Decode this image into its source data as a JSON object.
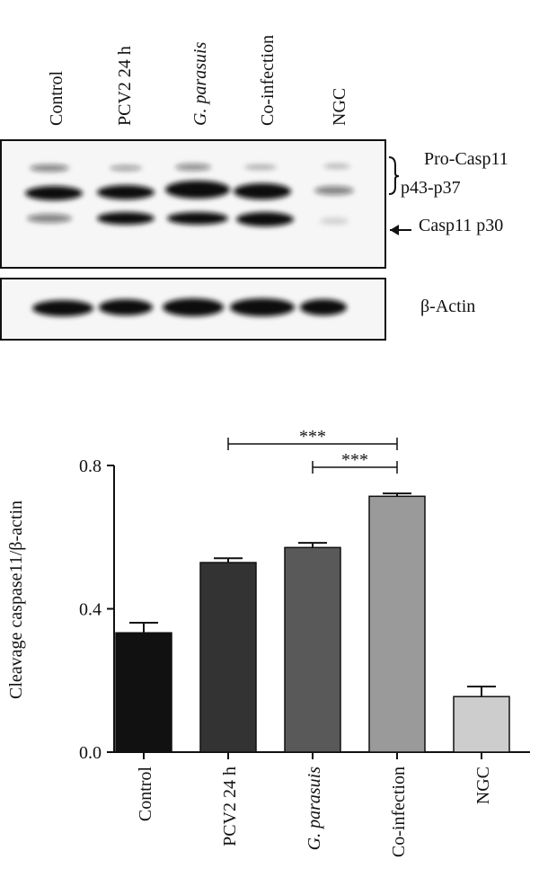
{
  "blot": {
    "lanes": [
      "Control",
      "PCV2 24 h",
      "G. parasuis",
      "Co-infection",
      "NGC"
    ],
    "labels": [
      "Pro-Casp11",
      "p43-p37",
      "Casp11 p30",
      "β-Actin"
    ]
  },
  "chart_data": {
    "type": "bar",
    "ylabel": "Cleavage caspase11/β-actin",
    "categories": [
      "Control",
      "PCV2 24 h",
      "G. parasuis",
      "Co-infection",
      "NGC"
    ],
    "values": [
      0.333,
      0.529,
      0.571,
      0.714,
      0.155
    ],
    "errors": [
      0.028,
      0.012,
      0.013,
      0.008,
      0.028
    ],
    "colors": [
      "#111111",
      "#333333",
      "#595959",
      "#9a9a9a",
      "#cdcdcd"
    ],
    "ylim": [
      0,
      0.8
    ],
    "yticks": [
      {
        "value": 0,
        "label": "0.0"
      },
      {
        "value": 0.4,
        "label": "0.4"
      },
      {
        "value": 0.8,
        "label": "0.8"
      }
    ],
    "annotations": [
      {
        "text": "***",
        "from": "PCV2 24 h",
        "to": "Co-infection"
      },
      {
        "text": "***",
        "from": "G. parasuis",
        "to": "Co-infection"
      }
    ]
  }
}
